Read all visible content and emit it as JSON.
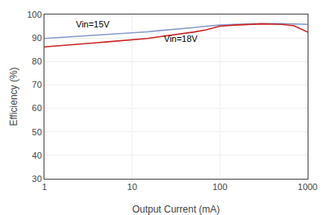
{
  "chart_data": {
    "type": "line",
    "xlabel": "Output Current (mA)",
    "ylabel": "Efficiency (%)",
    "log": "x",
    "grid": true,
    "x": [
      1,
      1.5,
      2,
      3,
      4,
      5,
      7,
      10,
      15,
      20,
      30,
      50,
      70,
      100,
      150,
      200,
      300,
      500,
      700,
      1000
    ],
    "xlim": [
      1,
      1000
    ],
    "xticks": [
      1,
      10,
      100,
      1000
    ],
    "ylim": [
      30,
      100
    ],
    "yticks": [
      30,
      40,
      50,
      60,
      70,
      80,
      90,
      100
    ],
    "series": [
      {
        "color": "#8899cc",
        "values": [
          89.8,
          90.2,
          90.5,
          91.0,
          91.3,
          91.5,
          91.8,
          92.1,
          92.6,
          93.1,
          93.6,
          94.4,
          95.0,
          95.5,
          95.8,
          96.0,
          96.1,
          96.1,
          96.0,
          95.8
        ]
      },
      {
        "color": "#cc2222",
        "values": [
          86.2,
          86.8,
          87.2,
          87.7,
          88.0,
          88.3,
          88.7,
          89.1,
          89.8,
          90.5,
          91.3,
          92.5,
          93.5,
          95.0,
          95.5,
          95.8,
          96.0,
          95.8,
          95.2,
          92.5
        ]
      }
    ],
    "annotations": [
      {
        "text": "Vin=15V",
        "x": 2.2,
        "y": 93.0
      },
      {
        "text": "Vin=18V",
        "x": 22,
        "y": 87.0
      }
    ]
  }
}
